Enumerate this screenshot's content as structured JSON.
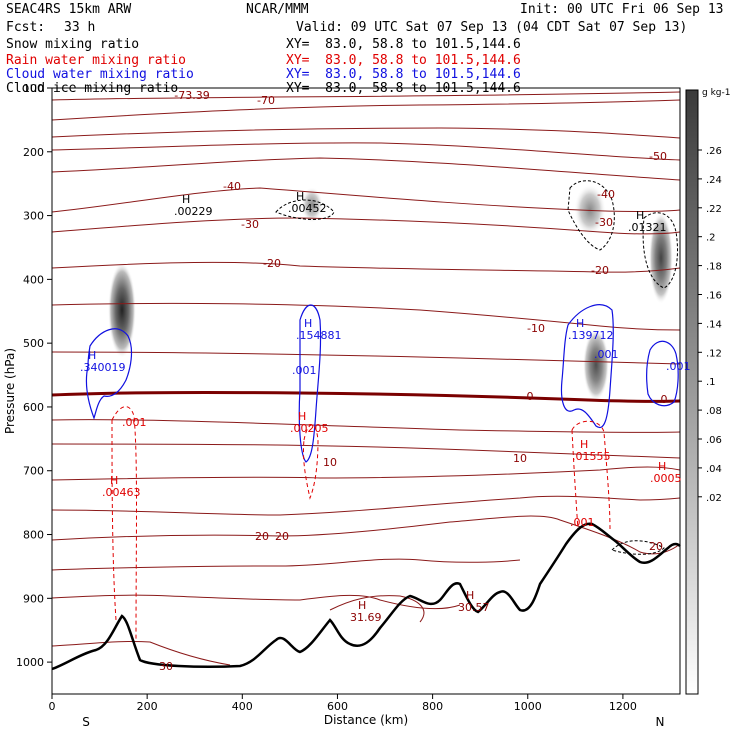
{
  "header": {
    "model": "SEAC4RS 15km ARW",
    "center": "NCAR/MMM",
    "init": "Init: 00 UTC Fri 06 Sep 13",
    "fcst_label": "Fcst:",
    "fcst_value": "33 h",
    "valid": "Valid: 09 UTC Sat 07 Sep 13 (04 CDT Sat 07 Sep 13)"
  },
  "fields": [
    {
      "name": "Snow mixing ratio",
      "xy": "XY=  83.0, 58.8 to 101.5,144.6",
      "color": "#000000"
    },
    {
      "name": "Rain water mixing ratio",
      "xy": "XY=  83.0, 58.8 to 101.5,144.6",
      "color": "#e00000"
    },
    {
      "name": "Cloud water mixing ratio",
      "xy": "XY=  83.0, 58.8 to 101.5,144.6",
      "color": "#1010e0"
    },
    {
      "name": "Cloud ice mixing ratio",
      "xy": "XY=  83.0, 58.8 to 101.5,144.6",
      "color": "#000000"
    }
  ],
  "chart_data": {
    "type": "contour cross-section",
    "xlabel": "Distance (km)",
    "ylabel": "Pressure (hPa)",
    "xlim": [
      0,
      1320
    ],
    "ylim": [
      1050,
      100
    ],
    "x_ticks": [
      "0",
      "200",
      "400",
      "600",
      "800",
      "1000",
      "1200"
    ],
    "y_ticks": [
      "100",
      "200",
      "300",
      "400",
      "500",
      "600",
      "700",
      "800",
      "900",
      "1000"
    ],
    "endpoints": {
      "left": "S",
      "right": "N"
    },
    "colorbar": {
      "units": "g kg-1",
      "ticks": [
        ".26",
        ".24",
        ".22",
        ".2",
        ".18",
        ".16",
        ".14",
        ".12",
        ".1",
        ".08",
        ".06",
        ".04",
        ".02"
      ]
    },
    "temperature_labels": [
      "-73.39",
      "-70",
      "-50",
      "-40",
      "-40",
      "-30",
      "-30",
      "-20",
      "-20",
      "-10",
      "0",
      "0",
      "10",
      "10",
      "20",
      "20",
      "20",
      "30"
    ],
    "extrema_labels": [
      {
        "mark": "H",
        "value": ".00229",
        "color": "#000000"
      },
      {
        "mark": "H",
        "value": ".00452",
        "color": "#000000"
      },
      {
        "mark": "H",
        "value": ".01321",
        "color": "#000000"
      },
      {
        "mark": "H",
        "value": ".340019",
        "color": "#1010e0"
      },
      {
        "mark": "H",
        "value": ".154881",
        "color": "#1010e0"
      },
      {
        "mark": "H",
        "value": ".139712",
        "color": "#1010e0"
      },
      {
        "mark": "H",
        "value": ".00463",
        "color": "#e00000"
      },
      {
        "mark": "H",
        "value": ".00205",
        "color": "#e00000"
      },
      {
        "mark": "H",
        "value": ".01555",
        "color": "#e00000"
      },
      {
        "mark": "H",
        "value": ".0005",
        "color": "#e00000"
      },
      {
        "mark": "H",
        "value": "31.69",
        "color": "#8b0000"
      },
      {
        "mark": "H",
        "value": "30.57",
        "color": "#8b0000"
      }
    ],
    "contour_labels": [
      {
        "value": ".001",
        "color": "#1010e0"
      },
      {
        "value": ".001",
        "color": "#1010e0"
      },
      {
        "value": ".001",
        "color": "#1010e0"
      },
      {
        "value": ".001",
        "color": "#e00000"
      },
      {
        "value": ".001",
        "color": "#e00000"
      }
    ]
  }
}
